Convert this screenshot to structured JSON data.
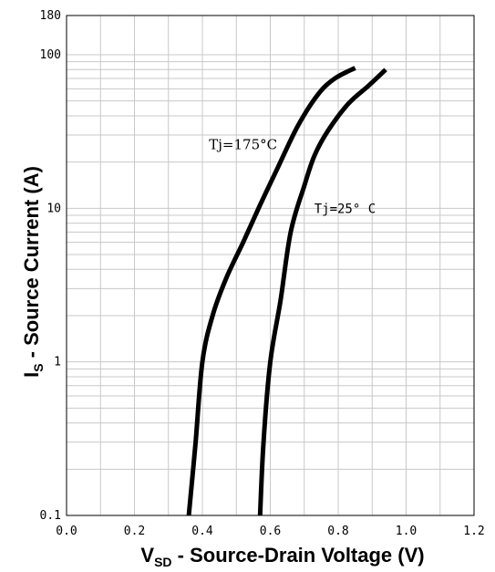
{
  "chart_data": {
    "type": "line",
    "title": "",
    "xlabel": {
      "main": "V",
      "sub": "SD",
      "rest": " - Source-Drain Voltage (V)"
    },
    "ylabel": {
      "main": "I",
      "sub": "S",
      "rest": " - Source Current (A)"
    },
    "xlim": [
      0.0,
      1.2
    ],
    "ylim": [
      0.1,
      180
    ],
    "yscale": "log",
    "grid": true,
    "x_ticks": [
      {
        "value": 0.0,
        "label": "0.0"
      },
      {
        "value": 0.2,
        "label": "0.2"
      },
      {
        "value": 0.4,
        "label": "0.4"
      },
      {
        "value": 0.6,
        "label": "0.6"
      },
      {
        "value": 0.8,
        "label": "0.8"
      },
      {
        "value": 1.0,
        "label": "1.0"
      },
      {
        "value": 1.2,
        "label": "1.2"
      }
    ],
    "y_ticks": [
      {
        "value": 0.1,
        "label": "0.1"
      },
      {
        "value": 1,
        "label": "1"
      },
      {
        "value": 10,
        "label": "10"
      },
      {
        "value": 100,
        "label": "100"
      },
      {
        "value": 180,
        "label": "180"
      }
    ],
    "series": [
      {
        "name": "Tj=175°C",
        "x": [
          0.36,
          0.38,
          0.4,
          0.43,
          0.47,
          0.52,
          0.57,
          0.62,
          0.68,
          0.74,
          0.79,
          0.85
        ],
        "y": [
          0.1,
          0.3,
          1.0,
          2.0,
          3.5,
          6.0,
          10.5,
          18.0,
          34.0,
          55.0,
          70.0,
          82.0
        ]
      },
      {
        "name": "Tj=25° C",
        "x": [
          0.57,
          0.58,
          0.6,
          0.63,
          0.66,
          0.7,
          0.73,
          0.77,
          0.83,
          0.89,
          0.94
        ],
        "y": [
          0.1,
          0.3,
          1.0,
          2.5,
          7.0,
          14.0,
          22.0,
          32.0,
          48.0,
          63.0,
          80.0
        ]
      }
    ],
    "annotations": [
      {
        "text": "Tj=175°C",
        "x": 0.52,
        "y": 26
      },
      {
        "text": "Tj=25° C",
        "x": 0.82,
        "y": 10.0
      }
    ],
    "colors": {
      "curve": "#000000",
      "grid": "#c8c8c8",
      "frame": "#000000"
    }
  }
}
